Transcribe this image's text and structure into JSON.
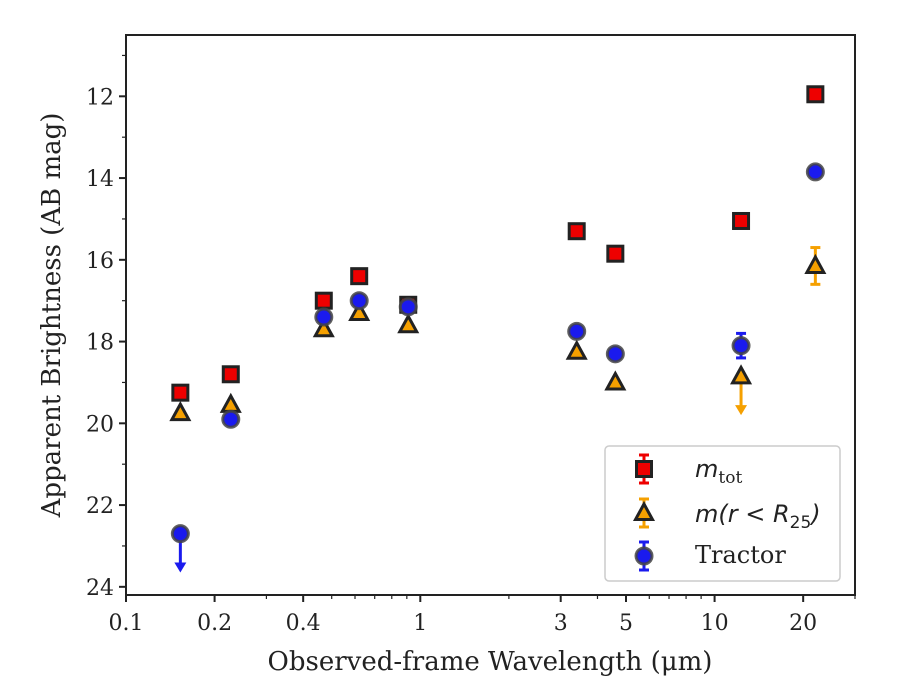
{
  "chart_data": {
    "type": "scatter",
    "title": "",
    "xlabel": "Observed-frame Wavelength (μm)",
    "ylabel": "Apparent Brightness (AB mag)",
    "x_scale": "log",
    "y_inverted": true,
    "xlim": [
      0.1,
      30
    ],
    "ylim": [
      24.2,
      10.5
    ],
    "x_ticks": [
      0.1,
      0.2,
      0.4,
      1,
      3,
      5,
      10,
      20
    ],
    "x_tick_labels": [
      "0.1",
      "0.2",
      "0.4",
      "1",
      "3",
      "5",
      "10",
      "20"
    ],
    "y_ticks": [
      12,
      14,
      16,
      18,
      20,
      22,
      24
    ],
    "y_tick_labels": [
      "12",
      "14",
      "16",
      "18",
      "20",
      "22",
      "24"
    ],
    "legend_position": "lower-right",
    "series": [
      {
        "name": "m_tot",
        "marker": "square",
        "color": "#ee0000",
        "points": [
          {
            "x": 0.153,
            "y": 19.25
          },
          {
            "x": 0.227,
            "y": 18.8
          },
          {
            "x": 0.47,
            "y": 17.0
          },
          {
            "x": 0.62,
            "y": 16.4
          },
          {
            "x": 0.91,
            "y": 17.1
          },
          {
            "x": 3.4,
            "y": 15.3
          },
          {
            "x": 4.6,
            "y": 15.85
          },
          {
            "x": 12.3,
            "y": 15.05
          },
          {
            "x": 22.0,
            "y": 11.95
          }
        ]
      },
      {
        "name": "m(r < R_25)",
        "marker": "triangle",
        "color": "#f5a000",
        "points": [
          {
            "x": 0.153,
            "y": 19.75
          },
          {
            "x": 0.227,
            "y": 19.55
          },
          {
            "x": 0.47,
            "y": 17.7
          },
          {
            "x": 0.62,
            "y": 17.3
          },
          {
            "x": 0.91,
            "y": 17.6
          },
          {
            "x": 3.4,
            "y": 18.25
          },
          {
            "x": 4.6,
            "y": 19.0
          },
          {
            "x": 12.3,
            "y": 18.85,
            "upper_limit": true,
            "limit_to": 19.75
          },
          {
            "x": 22.0,
            "y": 16.15,
            "yerr": 0.45
          }
        ]
      },
      {
        "name": "Tractor",
        "marker": "circle",
        "color": "#1a1aee",
        "points": [
          {
            "x": 0.153,
            "y": 22.7,
            "upper_limit": true,
            "limit_to": 23.6
          },
          {
            "x": 0.227,
            "y": 19.9
          },
          {
            "x": 0.47,
            "y": 17.4
          },
          {
            "x": 0.62,
            "y": 17.0
          },
          {
            "x": 0.91,
            "y": 17.15
          },
          {
            "x": 3.4,
            "y": 17.75
          },
          {
            "x": 4.6,
            "y": 18.3
          },
          {
            "x": 12.3,
            "y": 18.1,
            "yerr": 0.3
          },
          {
            "x": 22.0,
            "y": 13.85
          }
        ]
      }
    ]
  },
  "legend": {
    "items": [
      {
        "label_main": "m",
        "label_sub": "tot"
      },
      {
        "label_main": "m(r < R",
        "label_sub": "25",
        "label_tail": ")"
      },
      {
        "label_main": "Tractor",
        "label_sub": "",
        "label_tail": ""
      }
    ]
  }
}
